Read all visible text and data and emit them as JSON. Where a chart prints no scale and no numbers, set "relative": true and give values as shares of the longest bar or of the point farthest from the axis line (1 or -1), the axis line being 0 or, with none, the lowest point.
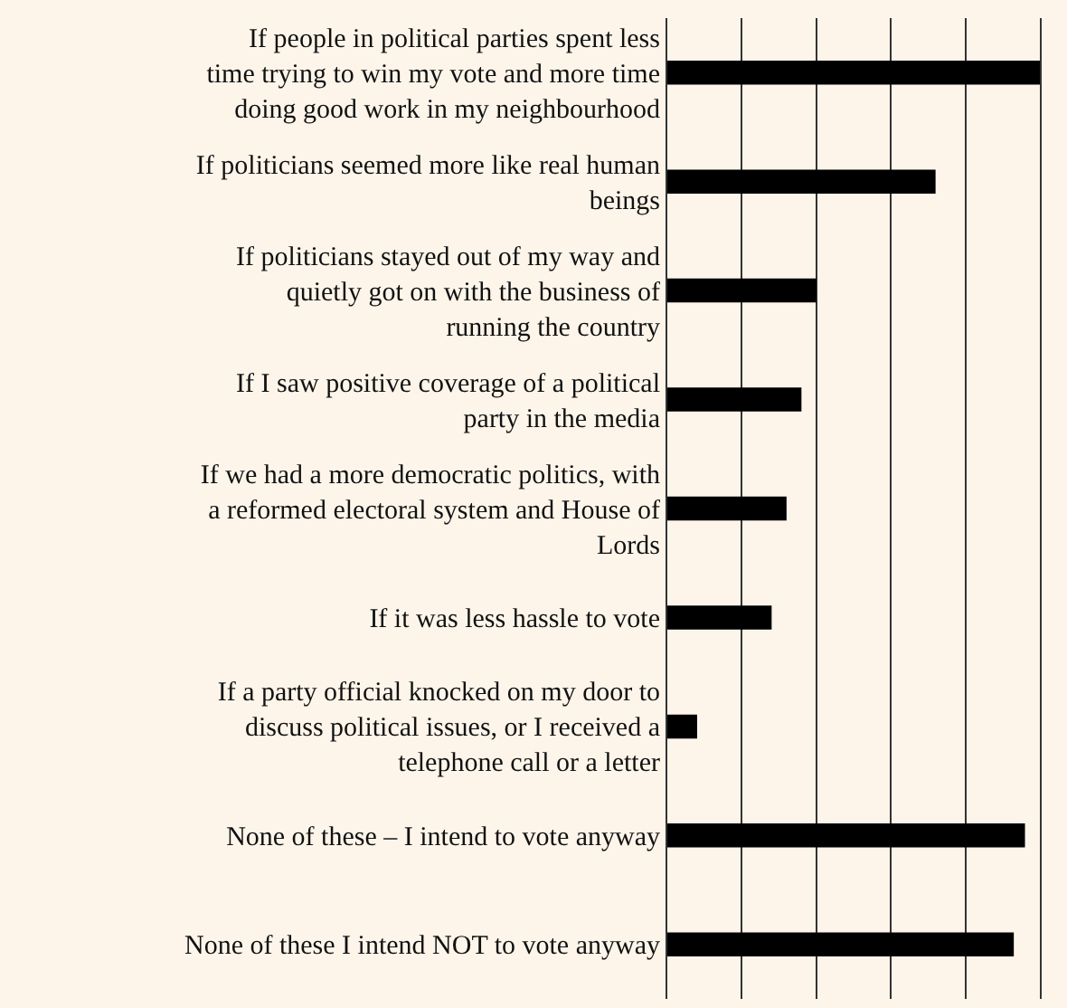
{
  "chart_data": {
    "type": "bar",
    "orientation": "horizontal",
    "relative": true,
    "grid": "x",
    "categories": [
      "If people in political parties spent less time trying to win my vote and more time doing good work in my neighbourhood",
      "If politicians seemed more like real human beings",
      "If politicians stayed out of my way and quietly got on with the business of running the country",
      "If I saw positive coverage of a political party in the media",
      "If we had a more democratic politics, with a reformed electoral system and House of Lords",
      "If it was less hassle to vote",
      "If a party official knocked on my door to discuss political issues, or I received a telephone call or a letter",
      "None of these – I intend to vote anyway",
      "None of these I intend NOT to vote anyway"
    ],
    "values": [
      1.0,
      0.72,
      0.4,
      0.36,
      0.32,
      0.28,
      0.08,
      0.96,
      0.93
    ],
    "color": "#000000"
  }
}
